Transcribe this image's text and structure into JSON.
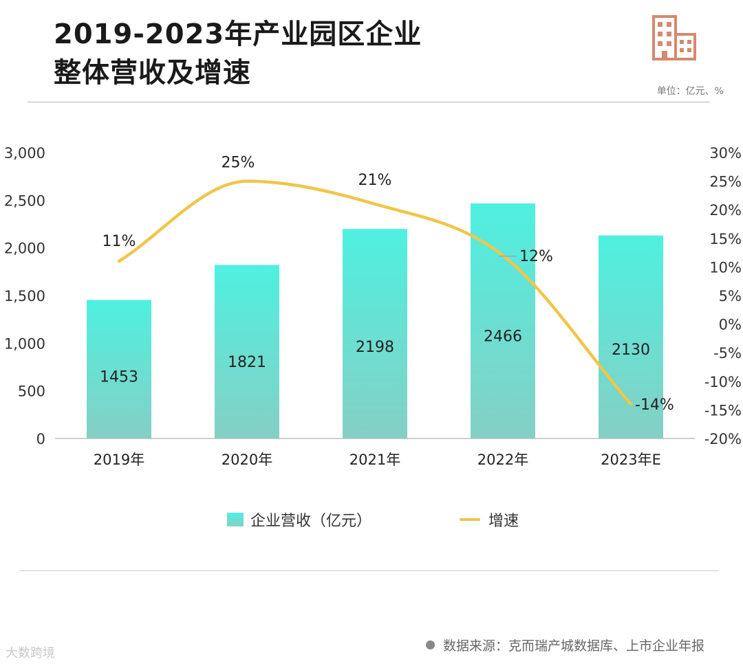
{
  "header": {
    "title_line1": "2019-2023年产业园区企业",
    "title_line2": "整体营收及增速",
    "unit_note": "单位：亿元、%"
  },
  "colors": {
    "bar_top": "#4ff0e0",
    "bar_bottom": "#85cfc4",
    "line": "#f0c64a",
    "logo": "#d5896e"
  },
  "icons": {
    "logo": "building-icon",
    "source_bullet": "bullet-dot-icon"
  },
  "chart_data": {
    "type": "bar",
    "categories": [
      "2019年",
      "2020年",
      "2021年",
      "2022年",
      "2023年E"
    ],
    "series": [
      {
        "name": "企业营收（亿元）",
        "type": "bar",
        "axis": "left",
        "values": [
          1453,
          1821,
          2198,
          2466,
          2130
        ],
        "labels": [
          "1453",
          "1821",
          "2198",
          "2466",
          "2130"
        ]
      },
      {
        "name": "增速",
        "type": "line",
        "axis": "right",
        "values": [
          11,
          25,
          21,
          12,
          -14
        ],
        "labels": [
          "11%",
          "25%",
          "21%",
          "12%",
          "-14%"
        ]
      }
    ],
    "left_axis": {
      "ylim": [
        0,
        3000
      ],
      "ticks": [
        0,
        500,
        1000,
        1500,
        2000,
        2500,
        3000
      ],
      "tick_labels": [
        "0",
        "500",
        "1,000",
        "1,500",
        "2,000",
        "2,500",
        "3,000"
      ]
    },
    "right_axis": {
      "ylim": [
        -20,
        30
      ],
      "ticks": [
        -20,
        -15,
        -10,
        -5,
        0,
        5,
        10,
        15,
        20,
        25,
        30
      ],
      "tick_labels": [
        "-20%",
        "-15%",
        "-10%",
        "-5%",
        "0%",
        "5%",
        "10%",
        "15%",
        "20%",
        "25%",
        "30%"
      ]
    },
    "grid": false,
    "legend": "bottom"
  },
  "source": {
    "text": "数据来源：克而瑞产城数据库、上市企业年报"
  },
  "watermark": {
    "text": "大数跨境"
  }
}
